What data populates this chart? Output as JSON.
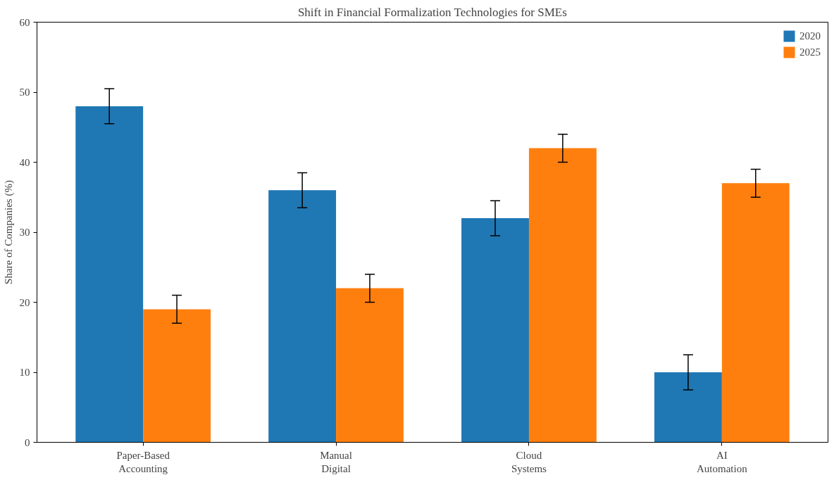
{
  "chart_data": {
    "type": "bar",
    "title": "Shift in Financial Formalization Technologies for SMEs",
    "ylabel": "Share of Companies (%)",
    "categories": [
      "Paper-Based Accounting",
      "Manual Digital",
      "Cloud Systems",
      "AI Automation"
    ],
    "series": [
      {
        "name": "2020",
        "color": "#1f77b4",
        "values": [
          48,
          36,
          32,
          10
        ],
        "errors": [
          2.5,
          2.5,
          2.5,
          2.5
        ]
      },
      {
        "name": "2025",
        "color": "#ff7f0e",
        "values": [
          19,
          22,
          42,
          37
        ],
        "errors": [
          2,
          2,
          2,
          2
        ]
      }
    ],
    "ylim": [
      0,
      60
    ],
    "yticks": [
      0,
      10,
      20,
      30,
      40,
      50,
      60
    ],
    "grid": false,
    "legend": "top right"
  }
}
